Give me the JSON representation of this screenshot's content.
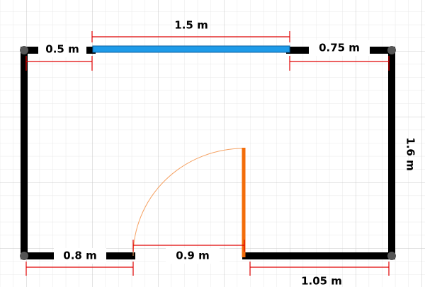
{
  "dimensions": [
    {
      "label": "1.5 m"
    },
    {
      "label": "0.5 m"
    },
    {
      "label": "0.75 m"
    },
    {
      "label": "1.6 m"
    },
    {
      "label": "0.8 m"
    },
    {
      "label": "0.9 m"
    },
    {
      "label": "1.05 m"
    }
  ]
}
